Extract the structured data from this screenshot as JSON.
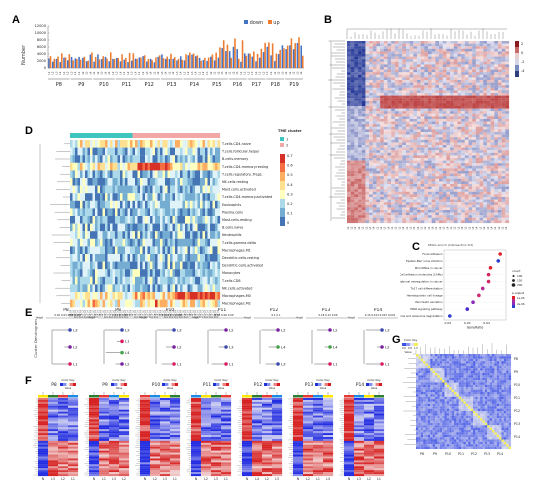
{
  "panels": {
    "A": "A",
    "B": "B",
    "C": "C",
    "D": "D",
    "E": "E",
    "F": "F",
    "G": "G"
  },
  "panel_a": {
    "ylabel": "Number",
    "legend": {
      "down": "down",
      "up": "up"
    },
    "colors": {
      "down": "#4472c4",
      "up": "#ed7d31"
    },
    "yticks": [
      "0",
      "2000",
      "4000",
      "6000",
      "8000",
      "10000",
      "12000"
    ],
    "patients": [
      "P8",
      "P9",
      "P10",
      "P11",
      "P12",
      "P13",
      "P14",
      "P15",
      "P16",
      "P17",
      "P18",
      "P19"
    ]
  },
  "panel_d": {
    "legend_title": "TME cluster",
    "legend_items": [
      "1",
      "2"
    ],
    "cell_types": [
      "T.cells.CD4.naive",
      "T.cells.follicular.helper",
      "B.cells.memory",
      "T.cells.CD4.memory.resting",
      "T.cells.regulatory..Tregs.",
      "NK.cells.resting",
      "Mast.cells.activated",
      "T.cells.CD4.memory.activated",
      "Eosinophils",
      "Plasma.cells",
      "Mast.cells.resting",
      "B.cells.naive",
      "Neutrophils",
      "T.cells.gamma.delta",
      "Macrophages.M1",
      "Dendritic.cells.resting",
      "Dendritic.cells.activated",
      "Monocytes",
      "T.cells.CD8",
      "NK.cells.activated",
      "Macrophages.M0",
      "Macrophages.M2"
    ],
    "scale": [
      "0.7",
      "0.6",
      "0.5",
      "0.4",
      "0.3",
      "0.2",
      "0.1",
      "0"
    ]
  },
  "panel_c": {
    "title": "KEGG enrich (Intersection.txt)",
    "terms": [
      "Focal adhesion",
      "Epstein-Barr virus infection",
      "MicroRNAs in cancer",
      "Cell adhesion molecules (CAMs)",
      "Transcriptional misregulation in cancer",
      "Th17 cell differentiation",
      "Hematopoietic cell lineage",
      "Pancreatic secretion",
      "PPAR signaling pathway",
      "Valine, leucine and isoleucine degradation"
    ],
    "xlabel": "GeneRatio",
    "xticks": [
      "0.02",
      "0.03",
      "0.04"
    ],
    "count_title": "count",
    "count_items": [
      "100",
      "150",
      "200"
    ],
    "padj_title": "p.adjust",
    "padj_items": [
      "1e-06",
      "2e-06"
    ]
  },
  "panel_e": {
    "ylabel": "Cluster Dendrogram",
    "height_label": "Height",
    "patients": [
      "P8",
      "P9",
      "P10",
      "P11",
      "P12",
      "P13",
      "P14"
    ],
    "scales": [
      "0.02 0.03 0.08 0.007",
      "0.24 0 .0.26",
      "0.118 0.1 0.003",
      "0.08 0.06 0.09",
      "0.1 0.1",
      "0.18 0.12 0.06",
      "0.15 0.013 0.007 0.001"
    ],
    "leaves": [
      [
        "L3",
        "L2",
        "L1"
      ],
      [
        "L3",
        "L1",
        "L4",
        "L2"
      ],
      [
        "L3",
        "L2",
        "L1"
      ],
      [
        "L2",
        "L3",
        "L1"
      ],
      [
        "L2",
        "L4",
        "L3"
      ],
      [
        "L2",
        "L4",
        "L1"
      ],
      [
        "L3",
        "L2",
        "L1"
      ]
    ]
  },
  "panel_f": {
    "key_title": "Color Key",
    "value_label": "Value",
    "patients": [
      "P8",
      "P9",
      "P10",
      "P11",
      "P12",
      "P13",
      "P14"
    ],
    "xlabels": [
      [
        "N",
        "L3",
        "L2",
        "L1"
      ],
      [
        "N",
        "L1",
        "L3",
        "L2"
      ],
      [
        "N",
        "L2",
        "L3",
        "L1"
      ],
      [
        "N",
        "L2",
        "L3",
        "L1"
      ],
      [
        "N",
        "L4",
        "L2",
        "L3"
      ],
      [
        "N",
        "L2",
        "L1",
        "L4"
      ],
      [
        "N",
        "L3",
        "L2",
        "L1"
      ]
    ]
  },
  "panel_g": {
    "key_title": "Color Key",
    "value_label": "Value",
    "scale": [
      "0.6",
      "0.8",
      "1.0"
    ],
    "labels": [
      "P8",
      "P9",
      "P10",
      "P11",
      "P12",
      "P13",
      "P14"
    ]
  }
}
